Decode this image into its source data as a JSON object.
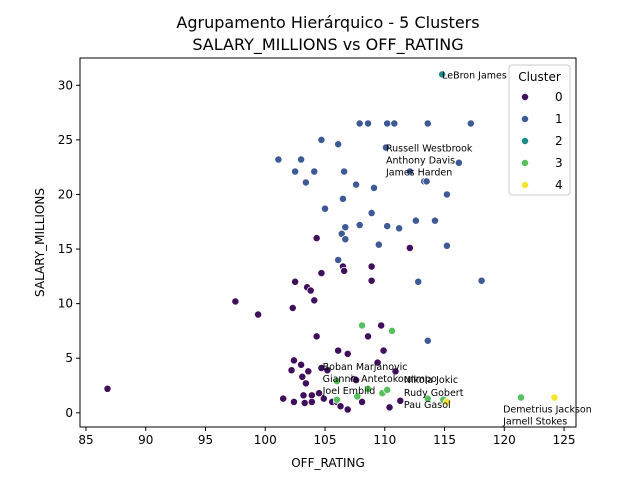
{
  "chart_data": {
    "type": "scatter",
    "title": "Agrupamento Hierárquico - 5 Clusters",
    "subtitle": "SALARY_MILLIONS vs OFF_RATING",
    "xlabel": "OFF_RATING",
    "ylabel": "SALARY_MILLIONS",
    "xlim": [
      84.5,
      126.0
    ],
    "ylim": [
      -1.3,
      32.5
    ],
    "xticks": [
      85,
      90,
      95,
      100,
      105,
      110,
      115,
      120,
      125
    ],
    "yticks": [
      0,
      5,
      10,
      15,
      20,
      25,
      30
    ],
    "grid": false,
    "legend": {
      "title": "Cluster",
      "placement": "top-right"
    },
    "colors": {
      "0": "#3f0f5c",
      "1": "#3d5a96",
      "2": "#1f8a8a",
      "3": "#56c15c",
      "4": "#f5e532"
    },
    "series": [
      {
        "name": "0",
        "points": [
          [
            86.8,
            2.2
          ],
          [
            97.5,
            10.2
          ],
          [
            99.4,
            9.0
          ],
          [
            101.5,
            1.3
          ],
          [
            102.2,
            3.9
          ],
          [
            102.3,
            9.6
          ],
          [
            102.4,
            4.8
          ],
          [
            102.5,
            12.0
          ],
          [
            102.4,
            1.0
          ],
          [
            103.0,
            4.4
          ],
          [
            103.1,
            3.3
          ],
          [
            103.2,
            1.6
          ],
          [
            103.3,
            0.9
          ],
          [
            103.4,
            2.7
          ],
          [
            103.5,
            11.5
          ],
          [
            103.6,
            3.8
          ],
          [
            103.8,
            11.2
          ],
          [
            103.9,
            1.6
          ],
          [
            103.9,
            1.0
          ],
          [
            104.1,
            10.3
          ],
          [
            104.3,
            16.0
          ],
          [
            104.3,
            7.0
          ],
          [
            104.5,
            1.8
          ],
          [
            104.7,
            12.8
          ],
          [
            104.7,
            4.1
          ],
          [
            104.9,
            1.3
          ],
          [
            105.2,
            3.9
          ],
          [
            105.6,
            1.0
          ],
          [
            106.0,
            1.0
          ],
          [
            106.1,
            5.7
          ],
          [
            106.3,
            0.6
          ],
          [
            106.5,
            13.4
          ],
          [
            106.6,
            13.0
          ],
          [
            106.9,
            5.4
          ],
          [
            106.9,
            0.3
          ],
          [
            107.4,
            3.1
          ],
          [
            107.6,
            3.0
          ],
          [
            108.1,
            1.0
          ],
          [
            108.6,
            7.0
          ],
          [
            108.9,
            13.4
          ],
          [
            108.9,
            12.1
          ],
          [
            109.4,
            4.6
          ],
          [
            109.7,
            8.0
          ],
          [
            109.9,
            5.7
          ],
          [
            110.4,
            0.5
          ],
          [
            110.9,
            3.8
          ],
          [
            111.3,
            1.1
          ],
          [
            112.1,
            15.1
          ]
        ]
      },
      {
        "name": "1",
        "points": [
          [
            101.1,
            23.2
          ],
          [
            102.5,
            22.1
          ],
          [
            103.0,
            23.2
          ],
          [
            103.4,
            21.1
          ],
          [
            104.1,
            22.1
          ],
          [
            104.7,
            25.0
          ],
          [
            105.0,
            18.7
          ],
          [
            106.1,
            24.6
          ],
          [
            106.1,
            14.0
          ],
          [
            106.4,
            16.4
          ],
          [
            106.5,
            19.6
          ],
          [
            106.6,
            22.1
          ],
          [
            106.7,
            15.9
          ],
          [
            106.7,
            17.0
          ],
          [
            107.6,
            20.9
          ],
          [
            107.9,
            26.5
          ],
          [
            107.9,
            17.2
          ],
          [
            108.6,
            26.5
          ],
          [
            108.9,
            18.3
          ],
          [
            109.1,
            20.6
          ],
          [
            109.5,
            15.4
          ],
          [
            110.1,
            24.3
          ],
          [
            110.2,
            26.5
          ],
          [
            110.2,
            17.1
          ],
          [
            110.8,
            26.5
          ],
          [
            111.2,
            16.9
          ],
          [
            112.1,
            22.1
          ],
          [
            112.6,
            17.6
          ],
          [
            112.8,
            12.0
          ],
          [
            113.3,
            21.2
          ],
          [
            113.5,
            21.2
          ],
          [
            113.6,
            26.5
          ],
          [
            113.6,
            6.6
          ],
          [
            114.2,
            17.6
          ],
          [
            115.2,
            20.0
          ],
          [
            115.2,
            15.3
          ],
          [
            116.2,
            22.9
          ],
          [
            117.2,
            26.5
          ],
          [
            118.1,
            12.1
          ]
        ]
      },
      {
        "name": "2",
        "points": [
          [
            114.8,
            31.0
          ]
        ]
      },
      {
        "name": "3",
        "points": [
          [
            106.0,
            2.9
          ],
          [
            106.0,
            1.2
          ],
          [
            107.7,
            1.5
          ],
          [
            108.1,
            8.0
          ],
          [
            108.6,
            2.2
          ],
          [
            109.8,
            1.8
          ],
          [
            110.2,
            2.1
          ],
          [
            110.6,
            7.5
          ],
          [
            113.6,
            1.3
          ],
          [
            114.9,
            1.2
          ],
          [
            121.4,
            1.4
          ]
        ]
      },
      {
        "name": "4",
        "points": [
          [
            115.2,
            1.0
          ],
          [
            124.2,
            1.4
          ]
        ]
      }
    ],
    "annotations": [
      {
        "text": "LeBron James",
        "x": 114.8,
        "y": 31.0
      },
      {
        "text": "Russell Westbrook",
        "x": 110.1,
        "y": 24.3
      },
      {
        "text": "Anthony Davis",
        "x": 110.1,
        "y": 23.2
      },
      {
        "text": "James Harden",
        "x": 110.1,
        "y": 22.1
      },
      {
        "text": "Boban Marjanovic",
        "x": 104.8,
        "y": 4.3
      },
      {
        "text": "Giannis Antetokounmpo",
        "x": 104.8,
        "y": 3.2
      },
      {
        "text": "Nikola Jokic",
        "x": 111.6,
        "y": 3.1
      },
      {
        "text": "Joel Embiid",
        "x": 104.8,
        "y": 2.1
      },
      {
        "text": "Rudy Gobert",
        "x": 111.6,
        "y": 1.9
      },
      {
        "text": "Pau Gasol",
        "x": 111.6,
        "y": 0.8
      },
      {
        "text": "Demetrius Jackson",
        "x": 119.9,
        "y": 0.4
      },
      {
        "text": "Jarnell Stokes",
        "x": 119.9,
        "y": -0.7
      }
    ]
  }
}
